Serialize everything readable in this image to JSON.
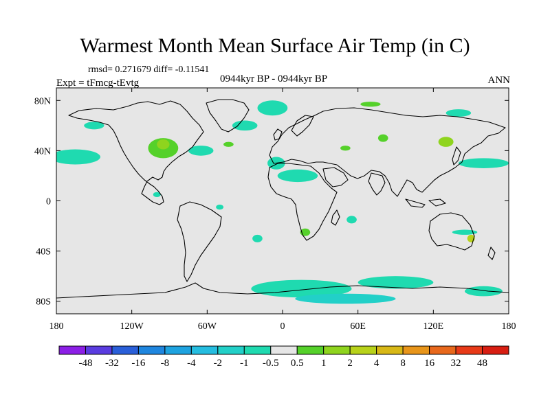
{
  "title": "Warmest Month Mean Surface Air Temp (in C)",
  "stats": "rmsd= 0.271679 diff= -0.11541",
  "experiment": "Expt = tFmcg-tEvtg",
  "period": "0944kyr BP - 0944kyr BP",
  "season": "ANN",
  "map": {
    "projection": "cylindrical equidistant",
    "lon_range": [
      -180,
      180
    ],
    "lat_range": [
      -90,
      90
    ],
    "x_ticks": [
      {
        "lon": -180,
        "label": "180"
      },
      {
        "lon": -120,
        "label": "120W"
      },
      {
        "lon": -60,
        "label": "60W"
      },
      {
        "lon": 0,
        "label": "0"
      },
      {
        "lon": 60,
        "label": "60E"
      },
      {
        "lon": 120,
        "label": "120E"
      },
      {
        "lon": 180,
        "label": "180"
      }
    ],
    "y_ticks": [
      {
        "lat": 80,
        "label": "80N"
      },
      {
        "lat": 40,
        "label": "40N"
      },
      {
        "lat": 0,
        "label": "0"
      },
      {
        "lat": -40,
        "label": "40S"
      },
      {
        "lat": -80,
        "label": "80S"
      }
    ],
    "background_color": "#e6e6e6",
    "coastline_color": "#000000"
  },
  "colorbar": {
    "levels": [
      "-48",
      "-32",
      "-16",
      "-8",
      "-4",
      "-2",
      "-1",
      "-0.5",
      "0.5",
      "1",
      "2",
      "4",
      "8",
      "16",
      "32",
      "48"
    ],
    "colors": [
      "#8c1fe6",
      "#5a3ce0",
      "#2a5fd9",
      "#1f86df",
      "#1ea3e0",
      "#25bde0",
      "#22d0c8",
      "#1fdab0",
      "#e6e6e6",
      "#55d12a",
      "#8fd41e",
      "#b8d21a",
      "#d8b816",
      "#e8951a",
      "#e8681c",
      "#e83a18",
      "#d81e12"
    ]
  },
  "anomaly_patches": [
    {
      "region": "Greenland Sea / Norwegian Sea",
      "lon": -8,
      "lat": 74,
      "rx": 12,
      "ry": 6,
      "level": "-0.5"
    },
    {
      "region": "Subpolar North Atlantic",
      "lon": -30,
      "lat": 60,
      "rx": 10,
      "ry": 4,
      "level": "-0.5"
    },
    {
      "region": "North Pacific",
      "lon": -165,
      "lat": 35,
      "rx": 20,
      "ry": 6,
      "level": "-0.5"
    },
    {
      "region": "Alaska Gulf",
      "lon": -150,
      "lat": 60,
      "rx": 8,
      "ry": 3,
      "level": "-0.5"
    },
    {
      "region": "Central USA",
      "lon": -95,
      "lat": 42,
      "rx": 12,
      "ry": 8,
      "level": "1"
    },
    {
      "region": "Great Lakes",
      "lon": -95,
      "lat": 45,
      "rx": 5,
      "ry": 4,
      "level": "2"
    },
    {
      "region": "Western Atlantic",
      "lon": -65,
      "lat": 40,
      "rx": 10,
      "ry": 4,
      "level": "-0.5"
    },
    {
      "region": "Mid Atlantic",
      "lon": -43,
      "lat": 45,
      "rx": 4,
      "ry": 2,
      "level": "1"
    },
    {
      "region": "Mediterranean / NW Africa",
      "lon": -5,
      "lat": 30,
      "rx": 7,
      "ry": 5,
      "level": "-0.5"
    },
    {
      "region": "Sahara",
      "lon": 12,
      "lat": 20,
      "rx": 16,
      "ry": 5,
      "level": "-0.5"
    },
    {
      "region": "Caspian area",
      "lon": 50,
      "lat": 42,
      "rx": 4,
      "ry": 2,
      "level": "1"
    },
    {
      "region": "Kara Sea",
      "lon": 70,
      "lat": 77,
      "rx": 8,
      "ry": 2,
      "level": "1"
    },
    {
      "region": "East Siberia",
      "lon": 140,
      "lat": 70,
      "rx": 10,
      "ry": 3,
      "level": "-0.5"
    },
    {
      "region": "Northeast China",
      "lon": 130,
      "lat": 47,
      "rx": 6,
      "ry": 4,
      "level": "2"
    },
    {
      "region": "North Pacific west",
      "lon": 160,
      "lat": 30,
      "rx": 20,
      "ry": 4,
      "level": "-0.5"
    },
    {
      "region": "Central Asia",
      "lon": 80,
      "lat": 50,
      "rx": 4,
      "ry": 3,
      "level": "1"
    },
    {
      "region": "Indian Ocean",
      "lon": 55,
      "lat": -15,
      "rx": 4,
      "ry": 3,
      "level": "-0.5"
    },
    {
      "region": "South Africa",
      "lon": 18,
      "lat": -25,
      "rx": 4,
      "ry": 3,
      "level": "1"
    },
    {
      "region": "Eastern Australia",
      "lon": 150,
      "lat": -30,
      "rx": 3,
      "ry": 3,
      "level": "4"
    },
    {
      "region": "Tasman Sea",
      "lon": 145,
      "lat": -25,
      "rx": 10,
      "ry": 2,
      "level": "-0.5"
    },
    {
      "region": "Southern Ocean Atlantic sector",
      "lon": 15,
      "lat": -70,
      "rx": 40,
      "ry": 7,
      "level": "-0.5"
    },
    {
      "region": "Southern Ocean Indian sector",
      "lon": 90,
      "lat": -65,
      "rx": 30,
      "ry": 5,
      "level": "-0.5"
    },
    {
      "region": "Ross Sea",
      "lon": 160,
      "lat": -72,
      "rx": 15,
      "ry": 4,
      "level": "-0.5"
    },
    {
      "region": "Antarctic margin",
      "lon": 50,
      "lat": -78,
      "rx": 40,
      "ry": 4,
      "level": "-1"
    },
    {
      "region": "South Atlantic",
      "lon": -20,
      "lat": -30,
      "rx": 4,
      "ry": 3,
      "level": "-0.5"
    },
    {
      "region": "Eastern Pacific",
      "lon": -100,
      "lat": 5,
      "rx": 3,
      "ry": 2,
      "level": "-0.5"
    },
    {
      "region": "South America",
      "lon": -50,
      "lat": -5,
      "rx": 3,
      "ry": 2,
      "level": "-0.5"
    }
  ]
}
